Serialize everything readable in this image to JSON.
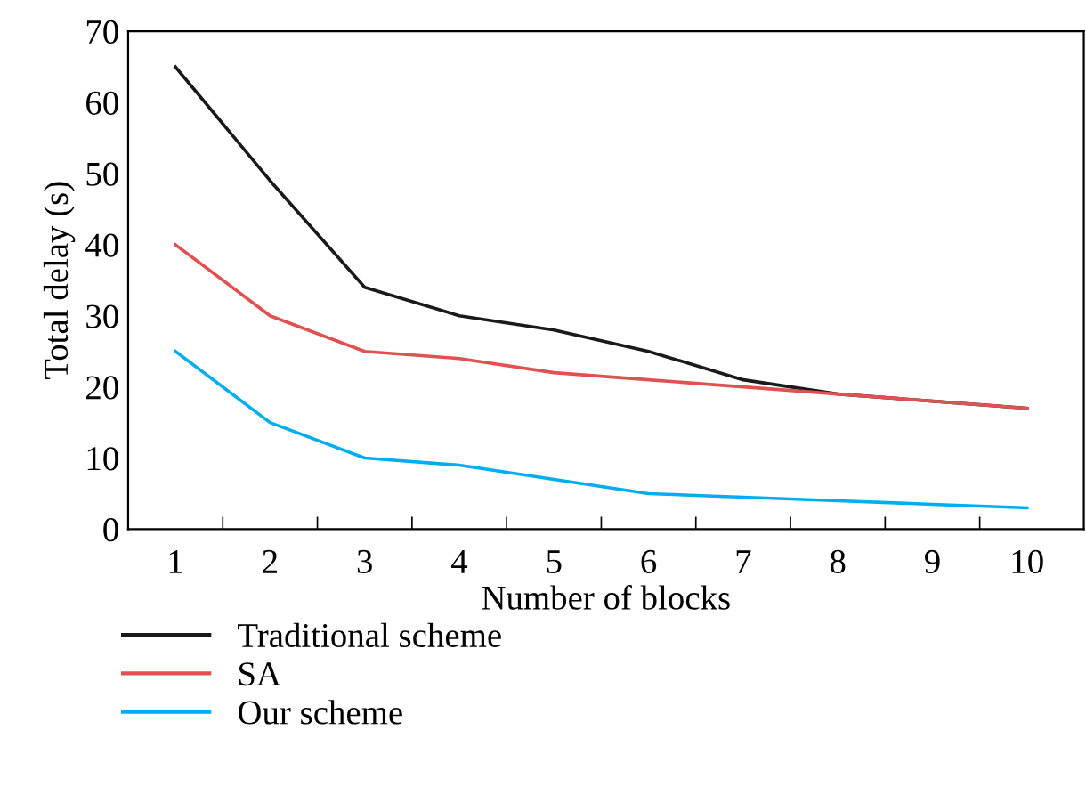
{
  "chart_data": {
    "type": "line",
    "xlabel": "Number of blocks",
    "ylabel": "Total delay (s)",
    "categories": [
      "1",
      "2",
      "3",
      "4",
      "5",
      "6",
      "7",
      "8",
      "9",
      "10"
    ],
    "series": [
      {
        "name": "Traditional scheme",
        "color": "#1a1a1a",
        "values": [
          65,
          49,
          34,
          30,
          28,
          25,
          21,
          19,
          18,
          17
        ]
      },
      {
        "name": "SA",
        "color": "#e05252",
        "values": [
          40,
          30,
          25,
          24,
          22,
          21,
          20,
          19,
          18,
          17
        ]
      },
      {
        "name": "Our scheme",
        "color": "#00aeef",
        "values": [
          25,
          15,
          10,
          9,
          7,
          5,
          4.5,
          4,
          3.5,
          3
        ]
      }
    ],
    "ylim": [
      0,
      70
    ],
    "yticks": [
      0,
      10,
      20,
      30,
      40,
      50,
      60,
      70
    ],
    "grid": false,
    "legend": "bottom left",
    "line_style": "solid"
  }
}
